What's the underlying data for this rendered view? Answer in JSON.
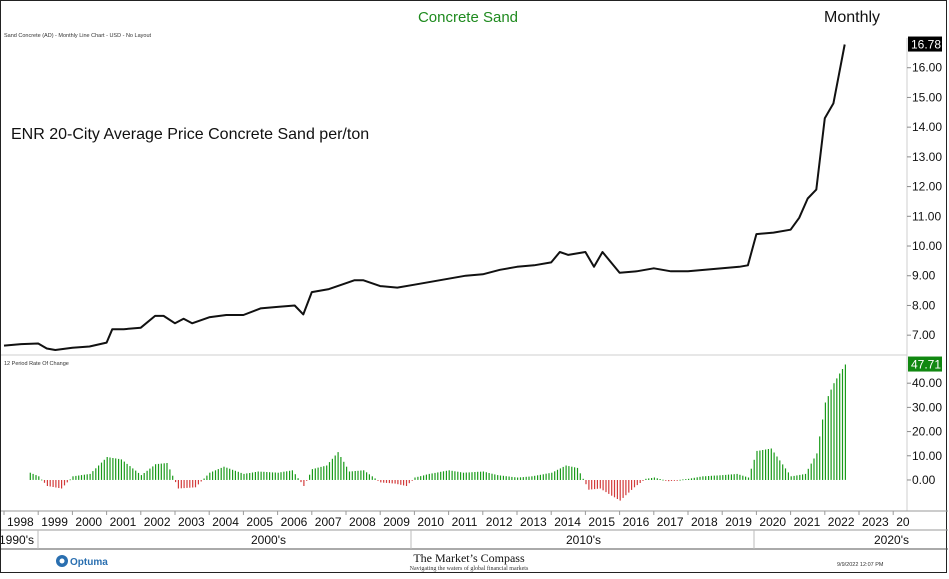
{
  "header": {
    "title": "Concrete Sand",
    "period": "Monthly",
    "price_panel_caption": "Sand Concrete (AD) - Monthly Line Chart - USD - No Layout",
    "roc_panel_caption": "12 Period Rate Of Change",
    "description": "ENR 20-City Average Price Concrete Sand per/ton"
  },
  "footer": {
    "logo": "Optuma",
    "brand": "The Market’s Compass",
    "tagline": "Navigating the waters of global financial markets",
    "timestamp": "9/9/2022 12:07 PM"
  },
  "colors": {
    "title": "#1e8a1e",
    "line": "#111111",
    "roc_positive": "#1a9b1a",
    "roc_negative": "#d33b3b",
    "last_price_tag": "#000000",
    "last_roc_tag": "#118811"
  },
  "chart_data": [
    {
      "type": "line",
      "title": "Concrete Sand",
      "series": [
        {
          "x": [
            "1998-01",
            "1998-07",
            "1999-01",
            "1999-04",
            "1999-07",
            "2000-01",
            "2000-07",
            "2001-01",
            "2001-03",
            "2001-07",
            "2002-01",
            "2002-06",
            "2002-09",
            "2003-01",
            "2003-04",
            "2003-07",
            "2004-01",
            "2004-07",
            "2005-01",
            "2005-07",
            "2006-01",
            "2006-07",
            "2006-10",
            "2007-01",
            "2007-07",
            "2008-01",
            "2008-04",
            "2008-07",
            "2009-01",
            "2009-07",
            "2010-01",
            "2010-07",
            "2011-01",
            "2011-07",
            "2012-01",
            "2012-07",
            "2013-01",
            "2013-07",
            "2014-01",
            "2014-04",
            "2014-07",
            "2015-01",
            "2015-04",
            "2015-07",
            "2016-01",
            "2016-07",
            "2017-01",
            "2017-07",
            "2018-01",
            "2018-07",
            "2019-01",
            "2019-07",
            "2019-10",
            "2020-01",
            "2020-07",
            "2021-01",
            "2021-04",
            "2021-07",
            "2021-10",
            "2022-01",
            "2022-04",
            "2022-06",
            "2022-08"
          ],
          "y": [
            6.65,
            6.7,
            6.72,
            6.55,
            6.5,
            6.58,
            6.62,
            6.75,
            7.2,
            7.2,
            7.25,
            7.65,
            7.65,
            7.4,
            7.55,
            7.4,
            7.6,
            7.68,
            7.68,
            7.9,
            7.95,
            8.0,
            7.7,
            8.45,
            8.55,
            8.75,
            8.85,
            8.85,
            8.65,
            8.6,
            8.7,
            8.8,
            8.9,
            9.0,
            9.05,
            9.2,
            9.3,
            9.35,
            9.45,
            9.8,
            9.7,
            9.8,
            9.3,
            9.8,
            9.1,
            9.15,
            9.25,
            9.15,
            9.15,
            9.2,
            9.25,
            9.3,
            9.35,
            10.4,
            10.45,
            10.55,
            10.95,
            11.6,
            11.9,
            14.3,
            14.8,
            15.8,
            16.78
          ]
        }
      ],
      "last_value": "16.78",
      "ylim": [
        6.4,
        17.0
      ],
      "yticks": [
        "7.00",
        "8.00",
        "9.00",
        "10.00",
        "11.00",
        "12.00",
        "13.00",
        "14.00",
        "15.00",
        "16.00"
      ],
      "xticks": [
        "1998",
        "1999",
        "2000",
        "2001",
        "2002",
        "2003",
        "2004",
        "2005",
        "2006",
        "2007",
        "2008",
        "2009",
        "2010",
        "2011",
        "2012",
        "2013",
        "2014",
        "2015",
        "2016",
        "2017",
        "2018",
        "2019",
        "2020",
        "2021",
        "2022",
        "2023",
        "20"
      ],
      "decades": [
        "1990's",
        "2000's",
        "2010's",
        "2020's"
      ],
      "grid": false
    },
    {
      "type": "bar",
      "title": "12 Period Rate Of Change",
      "series": [
        {
          "x": [
            "1998-10",
            "1999-01",
            "1999-04",
            "1999-09",
            "2000-01",
            "2000-07",
            "2001-01",
            "2001-06",
            "2002-01",
            "2002-06",
            "2002-10",
            "2003-02",
            "2003-08",
            "2004-01",
            "2004-06",
            "2005-01",
            "2005-06",
            "2006-01",
            "2006-06",
            "2006-10",
            "2007-01",
            "2007-06",
            "2007-10",
            "2008-02",
            "2008-07",
            "2009-01",
            "2009-06",
            "2009-10",
            "2010-01",
            "2010-06",
            "2011-01",
            "2011-06",
            "2012-01",
            "2012-06",
            "2013-01",
            "2013-06",
            "2014-01",
            "2014-06",
            "2014-10",
            "2015-02",
            "2015-06",
            "2015-10",
            "2016-01",
            "2016-06",
            "2016-10",
            "2017-01",
            "2017-06",
            "2018-01",
            "2018-06",
            "2019-01",
            "2019-06",
            "2019-10",
            "2020-01",
            "2020-06",
            "2021-01",
            "2021-06",
            "2021-10",
            "2022-01",
            "2022-04",
            "2022-06",
            "2022-08"
          ],
          "y": [
            3.0,
            1.5,
            -2.5,
            -3.5,
            1.5,
            2.5,
            9.5,
            8.5,
            2.0,
            6.5,
            7.0,
            -3.5,
            -3.0,
            3.0,
            5.5,
            2.5,
            3.5,
            3.0,
            4.0,
            -2.5,
            4.5,
            6.0,
            11.5,
            3.5,
            4.0,
            -1.0,
            -1.5,
            -2.5,
            1.0,
            2.5,
            4.0,
            3.0,
            3.5,
            2.0,
            1.0,
            1.5,
            3.0,
            6.0,
            5.0,
            -4.0,
            -3.5,
            -6.5,
            -8.5,
            -3.0,
            0.5,
            1.0,
            -0.5,
            0.5,
            1.5,
            2.0,
            2.5,
            1.0,
            12.0,
            13.0,
            1.5,
            2.5,
            11.0,
            32.0,
            40.0,
            44.0,
            47.71
          ]
        }
      ],
      "last_value": "47.71",
      "ylim": [
        -12,
        50
      ],
      "yticks": [
        "0.00",
        "10.00",
        "20.00",
        "30.00",
        "40.00"
      ],
      "grid": false
    }
  ]
}
